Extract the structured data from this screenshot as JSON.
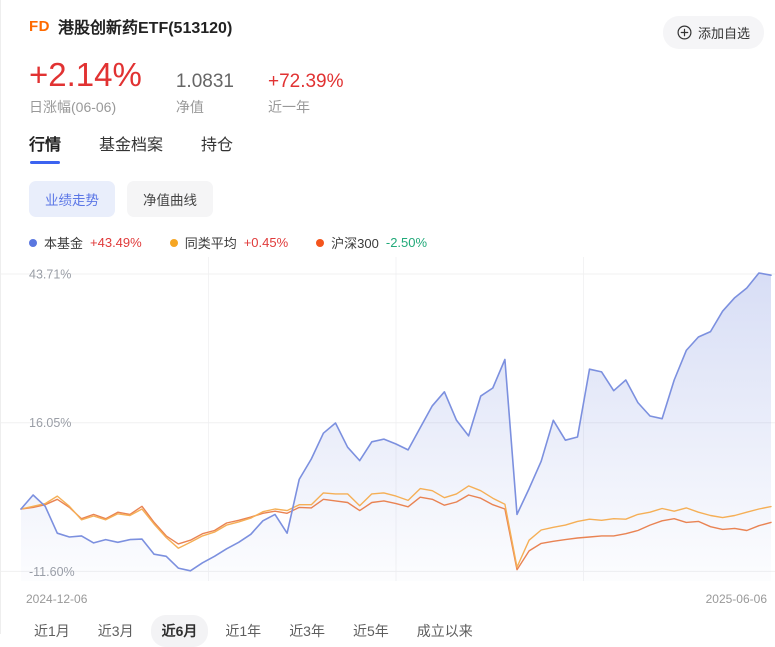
{
  "header": {
    "logo": "FD",
    "title": "港股创新药ETF(513120)",
    "add_watchlist_label": "添加自选"
  },
  "stats": {
    "daily_change_value": "+2.14%",
    "daily_change_label": "日涨幅(06-06)",
    "nav_value": "1.0831",
    "nav_label": "净值",
    "one_year_value": "+72.39%",
    "one_year_label": "近一年"
  },
  "tabs": [
    {
      "label": "行情",
      "active": true
    },
    {
      "label": "基金档案",
      "active": false
    },
    {
      "label": "持仓",
      "active": false
    }
  ],
  "chart_toggles": [
    {
      "label": "业绩走势",
      "active": true
    },
    {
      "label": "净值曲线",
      "active": false
    }
  ],
  "legend": [
    {
      "name": "本基金",
      "value": "+43.49%",
      "dot_color": "#5A77E0",
      "value_color": "#E03A3A"
    },
    {
      "name": "同类平均",
      "value": "+0.45%",
      "dot_color": "#F6A623",
      "value_color": "#E03A3A"
    },
    {
      "name": "沪深300",
      "value": "-2.50%",
      "dot_color": "#F4551D",
      "value_color": "#21A979"
    }
  ],
  "colors": {
    "accent_blue": "#3C63F0",
    "rise_red": "#E13232",
    "fall_green": "#21A979",
    "grid": "#f0f0f1"
  },
  "chart_data": {
    "type": "line",
    "title": "业绩走势",
    "x_start": "2024-12-06",
    "x_end": "2025-06-06",
    "y_ticks": [
      {
        "label": "43.71%",
        "value": 43.71
      },
      {
        "label": "16.05%",
        "value": 16.05
      },
      {
        "label": "-11.60%",
        "value": -11.6
      }
    ],
    "ylim": [
      -13,
      46
    ],
    "grid": true,
    "legend_position": "top",
    "series": [
      {
        "name": "本基金",
        "final": "+43.49%",
        "color": "#7C90DF",
        "fill": true,
        "values": [
          0.0,
          2.6,
          0.5,
          -4.5,
          -5.2,
          -5.0,
          -6.3,
          -5.7,
          -6.2,
          -5.7,
          -5.6,
          -8.4,
          -8.8,
          -11.0,
          -11.5,
          -10.0,
          -8.8,
          -7.4,
          -6.2,
          -4.7,
          -2.2,
          -1.0,
          -4.5,
          5.5,
          9.3,
          14.1,
          16.0,
          11.5,
          9.0,
          12.5,
          13.0,
          12.1,
          11.0,
          15.1,
          19.2,
          21.8,
          16.5,
          13.6,
          21.0,
          22.5,
          27.8,
          -1.0,
          3.8,
          8.9,
          16.5,
          12.8,
          13.4,
          26.0,
          25.5,
          22.0,
          24.0,
          19.8,
          17.3,
          16.8,
          24.0,
          29.5,
          32.0,
          33.0,
          36.8,
          39.3,
          41.1,
          43.9,
          43.49
        ]
      },
      {
        "name": "同类平均",
        "final": "+0.45%",
        "color": "#F5AF56",
        "fill": false,
        "values": [
          0.0,
          0.5,
          1.0,
          2.4,
          0.5,
          -2.0,
          -1.3,
          -2.0,
          -0.9,
          -1.2,
          0.0,
          -2.8,
          -5.3,
          -7.3,
          -6.2,
          -5.0,
          -4.3,
          -3.0,
          -2.4,
          -1.7,
          -0.5,
          0.0,
          -0.3,
          0.8,
          0.8,
          3.0,
          2.8,
          2.8,
          0.6,
          2.8,
          3.0,
          2.4,
          1.6,
          3.8,
          3.4,
          2.1,
          2.8,
          4.3,
          3.4,
          2.0,
          0.9,
          -10.8,
          -5.8,
          -3.9,
          -3.4,
          -3.0,
          -2.3,
          -1.9,
          -2.1,
          -1.8,
          -1.9,
          -1.0,
          -0.6,
          0.1,
          -0.4,
          0.2,
          -0.6,
          -1.2,
          -1.6,
          -1.2,
          -0.6,
          0.0,
          0.45
        ]
      },
      {
        "name": "沪深300",
        "final": "-2.50%",
        "color": "#E98353",
        "fill": false,
        "values": [
          0.0,
          0.3,
          0.8,
          1.8,
          0.3,
          -1.8,
          -1.0,
          -1.8,
          -0.6,
          -1.0,
          0.5,
          -2.5,
          -5.0,
          -6.5,
          -5.8,
          -4.6,
          -4.0,
          -2.6,
          -2.1,
          -1.5,
          -0.8,
          -0.4,
          -0.8,
          0.3,
          0.2,
          1.8,
          1.5,
          1.2,
          -0.3,
          1.2,
          1.5,
          1.0,
          0.4,
          2.2,
          1.8,
          0.7,
          1.3,
          2.6,
          2.0,
          0.8,
          0.0,
          -11.3,
          -7.8,
          -6.4,
          -6.0,
          -5.7,
          -5.4,
          -5.2,
          -5.0,
          -5.0,
          -4.6,
          -4.0,
          -3.0,
          -2.2,
          -1.8,
          -2.5,
          -2.3,
          -3.3,
          -3.8,
          -3.6,
          -4.0,
          -3.1,
          -2.5
        ]
      }
    ]
  },
  "x_axis": {
    "start_date": "2024-12-06",
    "end_date": "2025-06-06"
  },
  "range_buttons": [
    {
      "label": "近1月",
      "active": false
    },
    {
      "label": "近3月",
      "active": false
    },
    {
      "label": "近6月",
      "active": true
    },
    {
      "label": "近1年",
      "active": false
    },
    {
      "label": "近3年",
      "active": false
    },
    {
      "label": "近5年",
      "active": false
    },
    {
      "label": "成立以来",
      "active": false
    }
  ]
}
